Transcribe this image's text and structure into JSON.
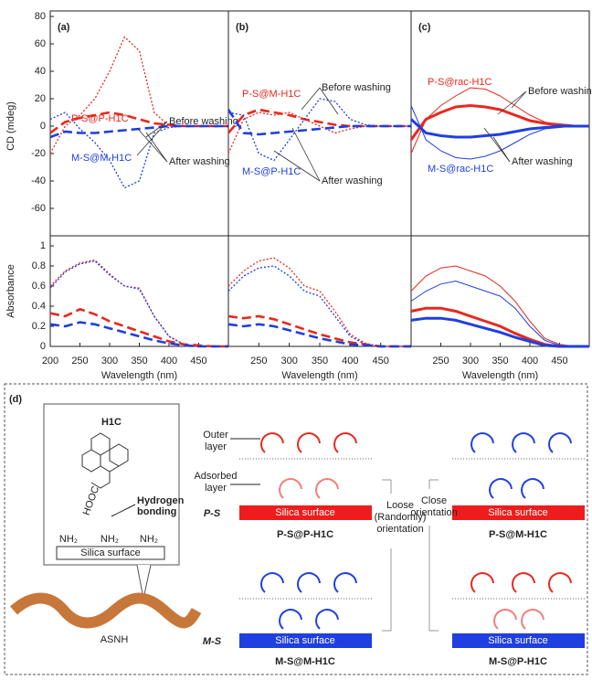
{
  "chart_data": [
    {
      "type": "line",
      "panel": "(a)",
      "y_label": "CD (mdeg)",
      "xlim": [
        200,
        500
      ],
      "ylim": [
        -80,
        80
      ],
      "yticks": [
        -60,
        -40,
        -20,
        0,
        20,
        40,
        60,
        80
      ],
      "x": [
        200,
        225,
        250,
        275,
        300,
        325,
        350,
        375,
        400,
        425,
        450,
        475,
        500
      ],
      "series": [
        {
          "color": "#e8281e",
          "style": "dotted",
          "values": [
            -20,
            0,
            8,
            20,
            40,
            65,
            55,
            10,
            0,
            0,
            0,
            0,
            0
          ]
        },
        {
          "color": "#e8281e",
          "style": "dashed",
          "values": [
            -5,
            3,
            6,
            8,
            10,
            8,
            5,
            2,
            1,
            0,
            0,
            0,
            0
          ]
        },
        {
          "color": "#1f3fe0",
          "style": "dotted",
          "values": [
            5,
            10,
            -2,
            -12,
            -25,
            -45,
            -40,
            -5,
            -1,
            0,
            0,
            0,
            0
          ]
        },
        {
          "color": "#1f3fe0",
          "style": "dashed",
          "values": [
            -8,
            -4,
            -5,
            -5,
            -4,
            -3,
            -2,
            -1,
            0,
            0,
            0,
            0,
            0
          ]
        }
      ],
      "annotations": [
        "P-S@P-H1C",
        "M-S@M-H1C",
        "Before washing",
        "After washing"
      ]
    },
    {
      "type": "line",
      "panel": "(b)",
      "xlim": [
        200,
        500
      ],
      "ylim": [
        -80,
        80
      ],
      "x": [
        200,
        225,
        250,
        275,
        300,
        325,
        350,
        375,
        400,
        425,
        450,
        475,
        500
      ],
      "series": [
        {
          "color": "#e8281e",
          "style": "dotted",
          "values": [
            -20,
            5,
            10,
            8,
            10,
            5,
            0,
            -5,
            -2,
            0,
            0,
            0,
            0
          ]
        },
        {
          "color": "#e8281e",
          "style": "dashed",
          "values": [
            -5,
            8,
            12,
            10,
            8,
            5,
            3,
            1,
            0,
            0,
            0,
            0,
            0
          ]
        },
        {
          "color": "#1f3fe0",
          "style": "dotted",
          "values": [
            10,
            8,
            -20,
            -25,
            -10,
            5,
            20,
            18,
            5,
            1,
            0,
            0,
            0
          ]
        },
        {
          "color": "#1f3fe0",
          "style": "dashed",
          "values": [
            12,
            -5,
            -6,
            -5,
            -4,
            -3,
            -2,
            -1,
            0,
            0,
            0,
            0,
            0
          ]
        }
      ],
      "annotations": [
        "P-S@M-H1C",
        "M-S@P-H1C",
        "Before washing",
        "After washing"
      ]
    },
    {
      "type": "line",
      "panel": "(c)",
      "xlim": [
        200,
        500
      ],
      "ylim": [
        -80,
        80
      ],
      "x": [
        200,
        225,
        250,
        275,
        300,
        325,
        350,
        375,
        400,
        425,
        450,
        475,
        500
      ],
      "series": [
        {
          "color": "#e8281e",
          "style": "thin",
          "values": [
            -20,
            5,
            15,
            22,
            28,
            27,
            22,
            15,
            8,
            3,
            1,
            0,
            0
          ]
        },
        {
          "color": "#e8281e",
          "style": "thick",
          "values": [
            -10,
            5,
            10,
            14,
            15,
            14,
            12,
            8,
            4,
            2,
            1,
            0,
            0
          ]
        },
        {
          "color": "#1f3fe0",
          "style": "thin",
          "values": [
            15,
            -10,
            -18,
            -23,
            -24,
            -22,
            -18,
            -12,
            -6,
            -2,
            -1,
            0,
            0
          ]
        },
        {
          "color": "#1f3fe0",
          "style": "thick",
          "values": [
            5,
            -5,
            -7,
            -8,
            -8,
            -7,
            -6,
            -4,
            -2,
            -1,
            0,
            0,
            0
          ]
        }
      ],
      "annotations": [
        "P-S@rac-H1C",
        "M-S@rac-H1C",
        "Before washing",
        "After washing"
      ]
    },
    {
      "type": "line",
      "y_label": "Absorbance",
      "x_label": "Wavelength (nm)",
      "xlim": [
        200,
        500
      ],
      "ylim": [
        0,
        1.1
      ],
      "yticks": [
        0,
        0.2,
        0.4,
        0.6,
        0.8,
        1
      ],
      "xticks": [
        200,
        250,
        300,
        350,
        400,
        450
      ],
      "x": [
        200,
        225,
        250,
        275,
        300,
        325,
        350,
        375,
        400,
        425,
        450,
        475,
        500
      ],
      "series": [
        {
          "color": "#e8281e",
          "style": "dotted",
          "values": [
            0.6,
            0.75,
            0.83,
            0.86,
            0.72,
            0.6,
            0.58,
            0.3,
            0.1,
            0.02,
            0,
            0,
            0
          ]
        },
        {
          "color": "#1f3fe0",
          "style": "dotted",
          "values": [
            0.58,
            0.74,
            0.82,
            0.85,
            0.71,
            0.6,
            0.57,
            0.3,
            0.1,
            0.02,
            0,
            0,
            0
          ]
        },
        {
          "color": "#e8281e",
          "style": "dashed",
          "values": [
            0.33,
            0.3,
            0.37,
            0.32,
            0.25,
            0.2,
            0.15,
            0.1,
            0.05,
            0.02,
            0.01,
            0,
            0
          ]
        },
        {
          "color": "#1f3fe0",
          "style": "dashed",
          "values": [
            0.22,
            0.2,
            0.24,
            0.22,
            0.18,
            0.14,
            0.1,
            0.06,
            0.03,
            0.01,
            0,
            0,
            0
          ]
        }
      ]
    },
    {
      "type": "line",
      "x_label": "Wavelength (nm)",
      "xlim": [
        200,
        500
      ],
      "ylim": [
        0,
        1.1
      ],
      "xticks": [
        250,
        300,
        350,
        400,
        450
      ],
      "x": [
        200,
        225,
        250,
        275,
        300,
        325,
        350,
        375,
        400,
        425,
        450,
        475,
        500
      ],
      "series": [
        {
          "color": "#e8281e",
          "style": "dotted",
          "values": [
            0.6,
            0.75,
            0.85,
            0.88,
            0.78,
            0.6,
            0.55,
            0.35,
            0.12,
            0.03,
            0,
            0,
            0
          ]
        },
        {
          "color": "#1f3fe0",
          "style": "dotted",
          "values": [
            0.55,
            0.7,
            0.78,
            0.8,
            0.7,
            0.55,
            0.5,
            0.3,
            0.1,
            0.02,
            0,
            0,
            0
          ]
        },
        {
          "color": "#e8281e",
          "style": "dashed",
          "values": [
            0.3,
            0.28,
            0.3,
            0.27,
            0.22,
            0.17,
            0.12,
            0.08,
            0.04,
            0.02,
            0,
            0,
            0
          ]
        },
        {
          "color": "#1f3fe0",
          "style": "dashed",
          "values": [
            0.22,
            0.2,
            0.22,
            0.2,
            0.16,
            0.12,
            0.08,
            0.05,
            0.02,
            0.01,
            0,
            0,
            0
          ]
        }
      ]
    },
    {
      "type": "line",
      "x_label": "Wavelength (nm)",
      "xlim": [
        200,
        500
      ],
      "ylim": [
        0,
        1.1
      ],
      "xticks": [
        250,
        300,
        350,
        400,
        450
      ],
      "x": [
        200,
        225,
        250,
        275,
        300,
        325,
        350,
        375,
        400,
        425,
        450,
        475,
        500
      ],
      "series": [
        {
          "color": "#e8281e",
          "style": "thin",
          "values": [
            0.55,
            0.7,
            0.78,
            0.8,
            0.75,
            0.7,
            0.6,
            0.45,
            0.25,
            0.08,
            0.02,
            0,
            0
          ]
        },
        {
          "color": "#1f3fe0",
          "style": "thin",
          "values": [
            0.45,
            0.55,
            0.62,
            0.65,
            0.6,
            0.55,
            0.5,
            0.38,
            0.2,
            0.06,
            0.01,
            0,
            0
          ]
        },
        {
          "color": "#e8281e",
          "style": "thick",
          "values": [
            0.35,
            0.38,
            0.38,
            0.35,
            0.3,
            0.25,
            0.2,
            0.13,
            0.07,
            0.02,
            0,
            0,
            0
          ]
        },
        {
          "color": "#1f3fe0",
          "style": "thick",
          "values": [
            0.26,
            0.28,
            0.28,
            0.26,
            0.22,
            0.18,
            0.14,
            0.09,
            0.05,
            0.01,
            0,
            0,
            0
          ]
        }
      ]
    }
  ],
  "diagram": {
    "label": "(d)",
    "molecule": "H1C",
    "acid": "HOOC",
    "hbond": [
      "Hydrogen",
      "bonding"
    ],
    "amines": [
      "NH₂",
      "NH₂",
      "NH₂"
    ],
    "inset_surface": "Silica surface",
    "helix": "ASNH",
    "outer": [
      "Outer",
      "layer"
    ],
    "adsorbed": [
      "Adsorbed",
      "layer"
    ],
    "loose": [
      "Loose",
      "(Randomly)",
      "orientation"
    ],
    "close": [
      "Close",
      "orientation"
    ],
    "ps": "P-S",
    "ms": "M-S",
    "surfaces": [
      "Silica surface",
      "Silica surface",
      "Silica surface",
      "Silica surface"
    ],
    "captions": [
      "P-S@P-H1C",
      "P-S@M-H1C",
      "M-S@M-H1C",
      "M-S@P-H1C"
    ]
  }
}
